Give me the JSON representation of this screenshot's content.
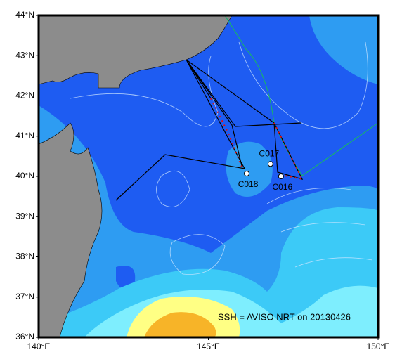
{
  "map": {
    "xlim": [
      140,
      150
    ],
    "ylim": [
      36,
      44
    ],
    "xticks": [
      {
        "value": 140,
        "label": "140°E"
      },
      {
        "value": 145,
        "label": "145°E"
      },
      {
        "value": 150,
        "label": "150°E"
      }
    ],
    "yticks": [
      {
        "value": 36,
        "label": "36°N"
      },
      {
        "value": 37,
        "label": "37°N"
      },
      {
        "value": 38,
        "label": "38°N"
      },
      {
        "value": 39,
        "label": "39°N"
      },
      {
        "value": 40,
        "label": "40°N"
      },
      {
        "value": 41,
        "label": "41°N"
      },
      {
        "value": 42,
        "label": "42°N"
      },
      {
        "value": 43,
        "label": "43°N"
      },
      {
        "value": 44,
        "label": "44°N"
      }
    ],
    "stations": [
      {
        "name": "C016",
        "lon": 147.14,
        "lat": 40.0
      },
      {
        "name": "C017",
        "lon": 146.83,
        "lat": 40.31
      },
      {
        "name": "C018",
        "lon": 146.13,
        "lat": 40.07
      }
    ],
    "annotation": "SSH = AVISO NRT on 20130426"
  }
}
